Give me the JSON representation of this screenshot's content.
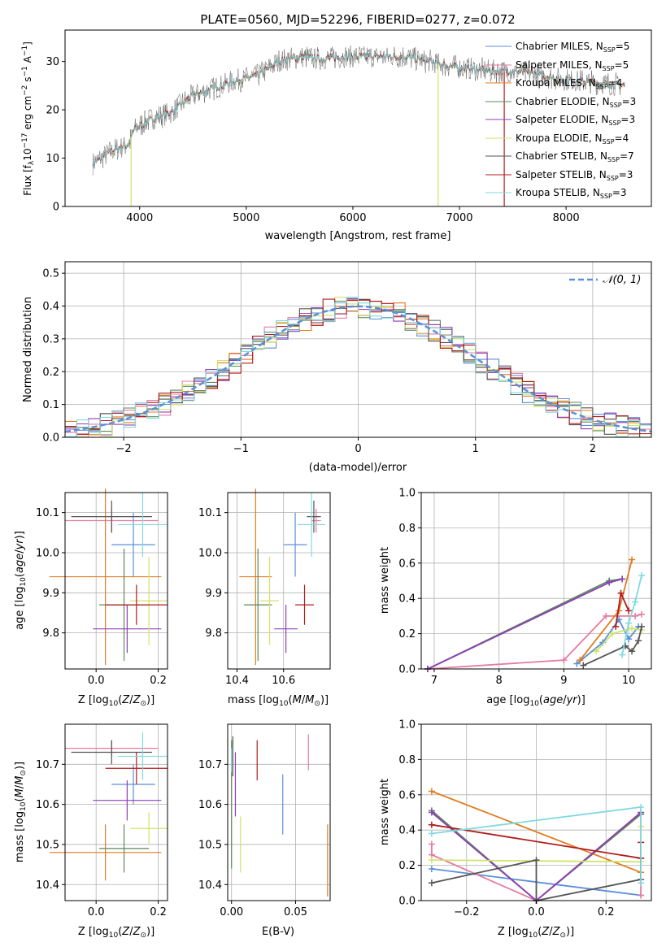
{
  "figure_title": "PLATE=0560, MJD=52296, FIBERID=0277, z=0.072",
  "colors": {
    "chabrier_miles": "#5b8fd9",
    "salpeter_miles": "#e57ba0",
    "kroupa_miles": "#e07b1f",
    "chabrier_elodie": "#5a8a5a",
    "salpeter_elodie": "#8f3fb5",
    "kroupa_elodie": "#d2e36a",
    "chabrier_stelib": "#555555",
    "salpeter_stelib": "#b01c1c",
    "kroupa_stelib": "#80d9de",
    "normal_curve": "#5b8fd9",
    "grid": "#b0b0b0"
  },
  "chart_data": [
    {
      "id": "spectrum",
      "type": "line",
      "title": "PLATE=0560, MJD=52296, FIBERID=0277, z=0.072",
      "xlabel": "wavelength [Angstrom, rest frame]",
      "ylabel": "Flux [f_λ 10^-17 erg cm^-2 s^-1 A^-1]",
      "xlim": [
        3300,
        8800
      ],
      "ylim": [
        0,
        36.5
      ],
      "xticks": [
        4000,
        5000,
        6000,
        7000,
        8000
      ],
      "yticks": [
        0,
        10,
        20,
        30
      ],
      "grid": false,
      "legend_position": "top-right",
      "legend": [
        {
          "label": "Chabrier MILES, N_SSP=5",
          "color": "#5b8fd9"
        },
        {
          "label": "Salpeter MILES, N_SSP=5",
          "color": "#e57ba0"
        },
        {
          "label": "Kroupa MILES, N_SSP=4",
          "color": "#e07b1f"
        },
        {
          "label": "Chabrier ELODIE, N_SSP=3",
          "color": "#5a8a5a"
        },
        {
          "label": "Salpeter ELODIE, N_SSP=3",
          "color": "#8f3fb5"
        },
        {
          "label": "Kroupa ELODIE, N_SSP=4",
          "color": "#d2e36a"
        },
        {
          "label": "Chabrier STELIB, N_SSP=7",
          "color": "#555555"
        },
        {
          "label": "Salpeter STELIB, N_SSP=3",
          "color": "#b01c1c"
        },
        {
          "label": "Kroupa STELIB, N_SSP=3",
          "color": "#80d9de"
        }
      ],
      "continuum": [
        [
          3560,
          9
        ],
        [
          3700,
          11
        ],
        [
          3900,
          13
        ],
        [
          3950,
          16
        ],
        [
          4100,
          18
        ],
        [
          4300,
          19.5
        ],
        [
          4500,
          23
        ],
        [
          4700,
          24.5
        ],
        [
          4900,
          26
        ],
        [
          5100,
          27
        ],
        [
          5300,
          30
        ],
        [
          5500,
          31
        ],
        [
          5700,
          30.5
        ],
        [
          5900,
          31
        ],
        [
          6100,
          31
        ],
        [
          6300,
          31
        ],
        [
          6500,
          31
        ],
        [
          6700,
          30
        ],
        [
          6900,
          29
        ],
        [
          7100,
          28.5
        ],
        [
          7300,
          28
        ],
        [
          7500,
          28
        ],
        [
          7700,
          27.5
        ],
        [
          7900,
          26.5
        ],
        [
          8100,
          26
        ],
        [
          8300,
          25.5
        ],
        [
          8550,
          25
        ]
      ],
      "dropouts": [
        {
          "x": 3920,
          "series": "kroupa_elodie"
        },
        {
          "x": 6800,
          "series": "kroupa_elodie"
        },
        {
          "x": 7420,
          "series": "salpeter_stelib"
        }
      ]
    },
    {
      "id": "residual_hist",
      "type": "histogram",
      "xlabel": "(data-model)/error",
      "ylabel": "Normed distribution",
      "xlim": [
        -2.5,
        2.5
      ],
      "ylim": [
        0,
        0.535
      ],
      "xticks": [
        -2,
        -1,
        0,
        1,
        2
      ],
      "yticks": [
        0.0,
        0.1,
        0.2,
        0.3,
        0.4,
        0.5
      ],
      "grid": true,
      "legend_position": "top-right",
      "legend": [
        {
          "label": "N(0,1)",
          "style": "dashed"
        }
      ],
      "bin_width": 0.1,
      "curve": "normal(0,1)"
    },
    {
      "id": "age_vs_Z",
      "type": "scatter_errorbar",
      "xlabel": "Z [log10(Z/Z⊙)]",
      "ylabel": "age [log10(age/yr)]",
      "xlim": [
        -0.1,
        0.23
      ],
      "ylim": [
        9.71,
        10.15
      ],
      "xticks": [
        0.0,
        0.2
      ],
      "yticks": [
        9.8,
        9.9,
        10.0,
        10.1
      ],
      "grid": true,
      "points": [
        {
          "series": "chabrier_miles",
          "x": 0.12,
          "xerr": 0.07,
          "y": 10.02,
          "yerr": 0.08
        },
        {
          "series": "salpeter_miles",
          "x": 0.05,
          "xerr": 0.15,
          "y": 10.08,
          "yerr": 0.03
        },
        {
          "series": "kroupa_miles",
          "x": 0.03,
          "xerr": 0.18,
          "y": 9.94,
          "yerr": 0.22
        },
        {
          "series": "chabrier_elodie",
          "x": 0.09,
          "xerr": 0.08,
          "y": 9.87,
          "yerr": 0.14
        },
        {
          "series": "salpeter_elodie",
          "x": 0.1,
          "xerr": 0.11,
          "y": 9.81,
          "yerr": 0.06
        },
        {
          "series": "kroupa_elodie",
          "x": 0.17,
          "xerr": 0.06,
          "y": 9.88,
          "yerr": 0.11
        },
        {
          "series": "chabrier_stelib",
          "x": 0.05,
          "xerr": 0.13,
          "y": 10.09,
          "yerr": 0.04
        },
        {
          "series": "salpeter_stelib",
          "x": 0.13,
          "xerr": 0.1,
          "y": 9.87,
          "yerr": 0.05
        },
        {
          "series": "kroupa_stelib",
          "x": 0.15,
          "xerr": 0.08,
          "y": 10.07,
          "yerr": 0.08
        }
      ]
    },
    {
      "id": "age_vs_mass",
      "type": "scatter_errorbar",
      "xlabel": "mass [log10(M/M⊙)]",
      "ylabel": "",
      "xlim": [
        10.36,
        10.8
      ],
      "ylim": [
        9.71,
        10.15
      ],
      "xticks": [
        10.4,
        10.6
      ],
      "yticks": [
        9.8,
        9.9,
        10.0,
        10.1
      ],
      "grid": true,
      "points": [
        {
          "series": "chabrier_miles",
          "x": 10.65,
          "xerr": 0.05,
          "y": 10.02,
          "yerr": 0.08
        },
        {
          "series": "salpeter_miles",
          "x": 10.74,
          "xerr": 0.02,
          "y": 10.08,
          "yerr": 0.03
        },
        {
          "series": "kroupa_miles",
          "x": 10.48,
          "xerr": 0.07,
          "y": 9.94,
          "yerr": 0.22
        },
        {
          "series": "chabrier_elodie",
          "x": 10.49,
          "xerr": 0.06,
          "y": 9.87,
          "yerr": 0.14
        },
        {
          "series": "salpeter_elodie",
          "x": 10.61,
          "xerr": 0.05,
          "y": 9.81,
          "yerr": 0.06
        },
        {
          "series": "kroupa_elodie",
          "x": 10.54,
          "xerr": 0.04,
          "y": 9.88,
          "yerr": 0.11
        },
        {
          "series": "chabrier_stelib",
          "x": 10.73,
          "xerr": 0.03,
          "y": 10.09,
          "yerr": 0.04
        },
        {
          "series": "salpeter_stelib",
          "x": 10.69,
          "xerr": 0.04,
          "y": 9.87,
          "yerr": 0.05
        },
        {
          "series": "kroupa_stelib",
          "x": 10.72,
          "xerr": 0.06,
          "y": 10.07,
          "yerr": 0.08
        }
      ]
    },
    {
      "id": "weight_vs_age",
      "type": "line",
      "xlabel": "age [log10(age/yr)]",
      "ylabel": "mass weight",
      "xlim": [
        6.8,
        10.35
      ],
      "ylim": [
        0,
        1.0
      ],
      "xticks": [
        7,
        8,
        9,
        10
      ],
      "yticks": [
        0.0,
        0.2,
        0.4,
        0.6,
        0.8,
        1.0
      ],
      "grid": true,
      "series": [
        {
          "series": "chabrier_miles",
          "points": [
            [
              9.2,
              0.03
            ],
            [
              9.6,
              0.15
            ],
            [
              9.85,
              0.28
            ],
            [
              10.0,
              0.17
            ],
            [
              10.15,
              0.24
            ]
          ]
        },
        {
          "series": "salpeter_miles",
          "points": [
            [
              6.9,
              0.0
            ],
            [
              9.0,
              0.05
            ],
            [
              9.65,
              0.3
            ],
            [
              10.1,
              0.3
            ],
            [
              10.2,
              0.31
            ]
          ]
        },
        {
          "series": "kroupa_miles",
          "points": [
            [
              9.25,
              0.05
            ],
            [
              9.85,
              0.33
            ],
            [
              10.05,
              0.62
            ]
          ]
        },
        {
          "series": "chabrier_elodie",
          "points": [
            [
              6.9,
              0.0
            ],
            [
              9.7,
              0.5
            ],
            [
              9.9,
              0.51
            ]
          ]
        },
        {
          "series": "salpeter_elodie",
          "points": [
            [
              6.9,
              0.0
            ],
            [
              9.7,
              0.49
            ],
            [
              9.9,
              0.51
            ]
          ]
        },
        {
          "series": "kroupa_elodie",
          "points": [
            [
              9.5,
              0.1
            ],
            [
              9.75,
              0.2
            ],
            [
              10.05,
              0.23
            ],
            [
              10.2,
              0.22
            ]
          ]
        },
        {
          "series": "chabrier_stelib",
          "points": [
            [
              9.3,
              0.02
            ],
            [
              9.95,
              0.13
            ],
            [
              10.05,
              0.1
            ],
            [
              10.15,
              0.16
            ],
            [
              10.2,
              0.24
            ]
          ]
        },
        {
          "series": "salpeter_stelib",
          "points": [
            [
              9.8,
              0.24
            ],
            [
              9.88,
              0.43
            ],
            [
              10.0,
              0.33
            ]
          ]
        },
        {
          "series": "kroupa_stelib",
          "points": [
            [
              9.9,
              0.08
            ],
            [
              10.0,
              0.26
            ],
            [
              10.1,
              0.38
            ],
            [
              10.2,
              0.53
            ]
          ]
        }
      ]
    },
    {
      "id": "mass_vs_Z",
      "type": "scatter_errorbar",
      "xlabel": "Z [log10(Z/Z⊙)]",
      "ylabel": "mass [log10(M/M⊙)]",
      "xlim": [
        -0.1,
        0.23
      ],
      "ylim": [
        10.36,
        10.8
      ],
      "xticks": [
        0.0,
        0.2
      ],
      "yticks": [
        10.4,
        10.5,
        10.6,
        10.7
      ],
      "grid": true,
      "points": [
        {
          "series": "chabrier_miles",
          "x": 0.12,
          "xerr": 0.07,
          "y": 10.65,
          "yerr": 0.05
        },
        {
          "series": "salpeter_miles",
          "x": 0.05,
          "xerr": 0.15,
          "y": 10.74,
          "yerr": 0.02
        },
        {
          "series": "kroupa_miles",
          "x": 0.03,
          "xerr": 0.18,
          "y": 10.48,
          "yerr": 0.07
        },
        {
          "series": "chabrier_elodie",
          "x": 0.09,
          "xerr": 0.08,
          "y": 10.49,
          "yerr": 0.06
        },
        {
          "series": "salpeter_elodie",
          "x": 0.1,
          "xerr": 0.11,
          "y": 10.61,
          "yerr": 0.05
        },
        {
          "series": "kroupa_elodie",
          "x": 0.17,
          "xerr": 0.06,
          "y": 10.54,
          "yerr": 0.04
        },
        {
          "series": "chabrier_stelib",
          "x": 0.05,
          "xerr": 0.13,
          "y": 10.73,
          "yerr": 0.03
        },
        {
          "series": "salpeter_stelib",
          "x": 0.13,
          "xerr": 0.1,
          "y": 10.69,
          "yerr": 0.04
        },
        {
          "series": "kroupa_stelib",
          "x": 0.15,
          "xerr": 0.08,
          "y": 10.72,
          "yerr": 0.06
        }
      ]
    },
    {
      "id": "mass_vs_ebv",
      "type": "scatter_errorbar",
      "xlabel": "E(B-V)",
      "ylabel": "",
      "xlim": [
        -0.003,
        0.077
      ],
      "ylim": [
        10.36,
        10.8
      ],
      "xticks": [
        0.0,
        0.05
      ],
      "yticks": [
        10.4,
        10.5,
        10.6,
        10.7
      ],
      "grid": true,
      "points": [
        {
          "series": "chabrier_miles",
          "x": 0.04,
          "xerr": 0,
          "y": 10.6,
          "yerr": 0.075
        },
        {
          "series": "salpeter_miles",
          "x": 0.06,
          "xerr": 0,
          "y": 10.73,
          "yerr": 0.045
        },
        {
          "series": "kroupa_miles",
          "x": 0.075,
          "xerr": 0,
          "y": 10.46,
          "yerr": 0.09
        },
        {
          "series": "chabrier_elodie",
          "x": 0.0,
          "xerr": 0,
          "y": 10.6,
          "yerr": 0.16
        },
        {
          "series": "salpeter_elodie",
          "x": 0.003,
          "xerr": 0,
          "y": 10.65,
          "yerr": 0.08
        },
        {
          "series": "kroupa_elodie",
          "x": 0.007,
          "xerr": 0,
          "y": 10.5,
          "yerr": 0.07
        },
        {
          "series": "chabrier_stelib",
          "x": 0.001,
          "xerr": 0,
          "y": 10.72,
          "yerr": 0.05
        },
        {
          "series": "salpeter_stelib",
          "x": 0.02,
          "xerr": 0,
          "y": 10.71,
          "yerr": 0.05
        },
        {
          "series": "kroupa_stelib",
          "x": 0.0,
          "xerr": 0,
          "y": 10.71,
          "yerr": 0.03
        }
      ]
    },
    {
      "id": "weight_vs_Z",
      "type": "line",
      "xlabel": "Z [log10(Z/Z⊙)]",
      "ylabel": "mass weight",
      "xlim": [
        -0.33,
        0.33
      ],
      "ylim": [
        0,
        1.0
      ],
      "xticks": [
        -0.2,
        0.0,
        0.2
      ],
      "yticks": [
        0.0,
        0.2,
        0.4,
        0.6,
        0.8,
        1.0
      ],
      "grid": true,
      "series": [
        {
          "series": "chabrier_miles",
          "points": [
            [
              -0.3,
              0.18
            ],
            [
              0.3,
              0.03
            ]
          ]
        },
        {
          "series": "salpeter_miles",
          "points": [
            [
              -0.3,
              0.32
            ],
            [
              -0.3,
              0.26
            ],
            [
              0.0,
              0.0
            ],
            [
              0.3,
              0.49
            ],
            [
              0.3,
              0.03
            ]
          ]
        },
        {
          "series": "kroupa_miles",
          "points": [
            [
              -0.3,
              0.62
            ],
            [
              0.3,
              0.16
            ]
          ]
        },
        {
          "series": "chabrier_elodie",
          "points": [
            [
              -0.3,
              0.51
            ],
            [
              0.0,
              0.0
            ],
            [
              0.3,
              0.49
            ]
          ]
        },
        {
          "series": "salpeter_elodie",
          "points": [
            [
              -0.3,
              0.5
            ],
            [
              0.0,
              0.0
            ],
            [
              0.3,
              0.5
            ]
          ]
        },
        {
          "series": "kroupa_elodie",
          "points": [
            [
              -0.3,
              0.23
            ],
            [
              0.3,
              0.22
            ],
            [
              0.3,
              0.42
            ]
          ]
        },
        {
          "series": "chabrier_stelib",
          "points": [
            [
              -0.3,
              0.1
            ],
            [
              0.0,
              0.23
            ],
            [
              0.0,
              0.0
            ],
            [
              0.3,
              0.12
            ],
            [
              0.3,
              0.24
            ]
          ]
        },
        {
          "series": "salpeter_stelib",
          "points": [
            [
              -0.3,
              0.43
            ],
            [
              0.3,
              0.24
            ],
            [
              0.3,
              0.33
            ]
          ]
        },
        {
          "series": "kroupa_stelib",
          "points": [
            [
              -0.3,
              0.38
            ],
            [
              0.3,
              0.53
            ],
            [
              0.3,
              0.1
            ]
          ]
        }
      ]
    }
  ]
}
